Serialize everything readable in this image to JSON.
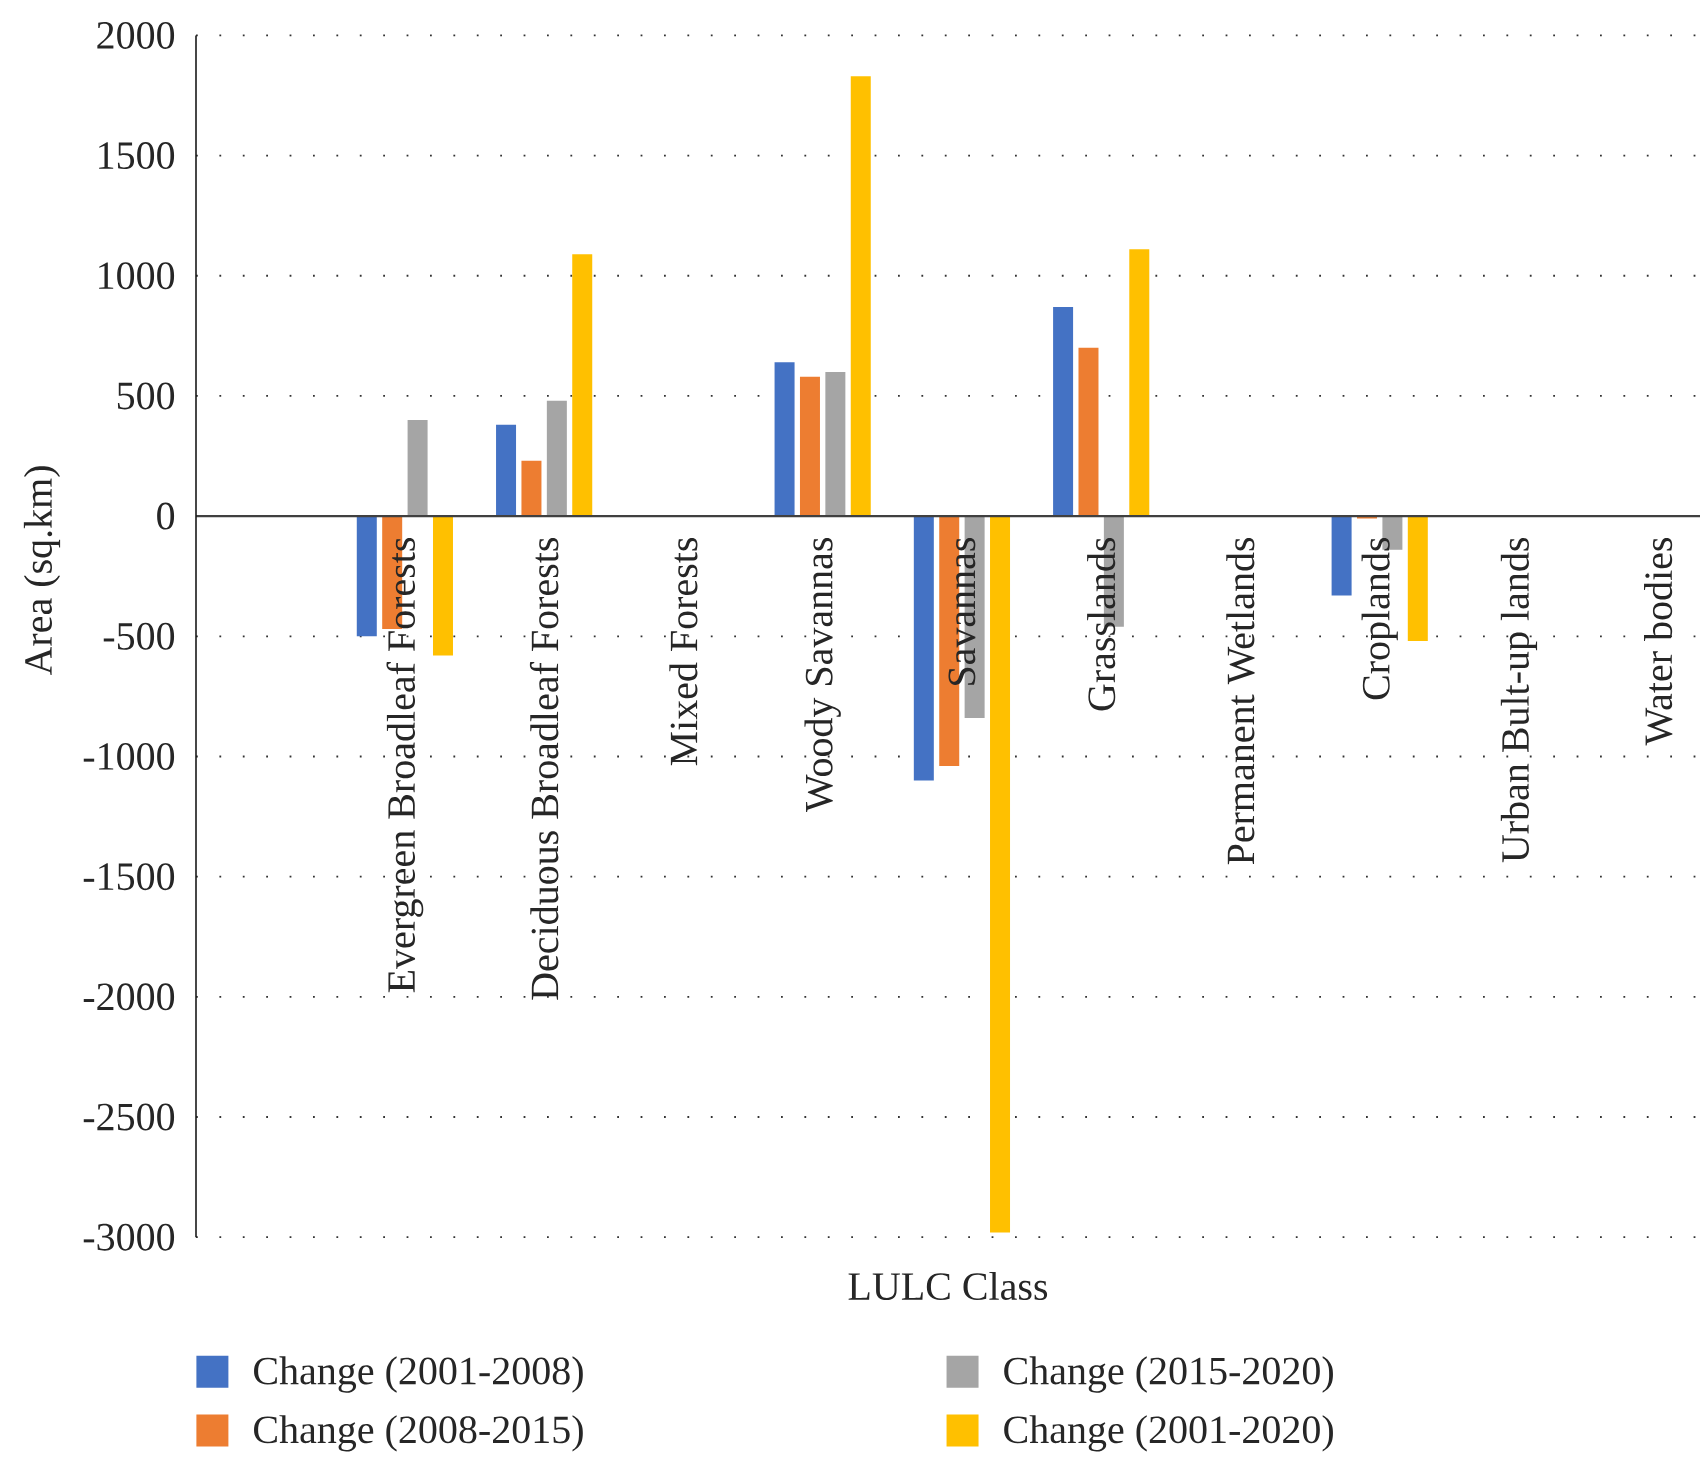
{
  "chart_data": {
    "type": "bar",
    "xlabel": "LULC Class",
    "ylabel": "Area (sq.km)",
    "categories": [
      "Evergreen Broadleaf Forests",
      "Deciduous Broadleaf Forests",
      "Mixed Forests",
      "Woody Savannas",
      "Savannas",
      "Grasslands",
      "Permanent Wetlands",
      "Croplands",
      "Urban Bult-up lands",
      "Water bodies"
    ],
    "series": [
      {
        "name": "Change (2001-2008)",
        "color": "#4472c4",
        "values": [
          -500,
          380,
          null,
          640,
          -1100,
          870,
          null,
          -330,
          null,
          null
        ]
      },
      {
        "name": "Change (2008-2015)",
        "color": "#ed7d31",
        "values": [
          -470,
          230,
          null,
          580,
          -1040,
          700,
          null,
          -10,
          null,
          null
        ]
      },
      {
        "name": "Change (2015-2020)",
        "color": "#a5a5a5",
        "values": [
          400,
          480,
          null,
          600,
          -840,
          -460,
          null,
          -140,
          null,
          null
        ]
      },
      {
        "name": "Change (2001-2020)",
        "color": "#ffc000",
        "values": [
          -580,
          1090,
          null,
          1830,
          -2980,
          1110,
          null,
          -520,
          null,
          null
        ]
      }
    ],
    "ylim": [
      -3000,
      2000
    ],
    "yticks": [
      -3000,
      -2500,
      -2000,
      -1500,
      -1000,
      -500,
      0,
      500,
      1000,
      1500,
      2000
    ],
    "grid": "y",
    "legend": "bottom"
  }
}
